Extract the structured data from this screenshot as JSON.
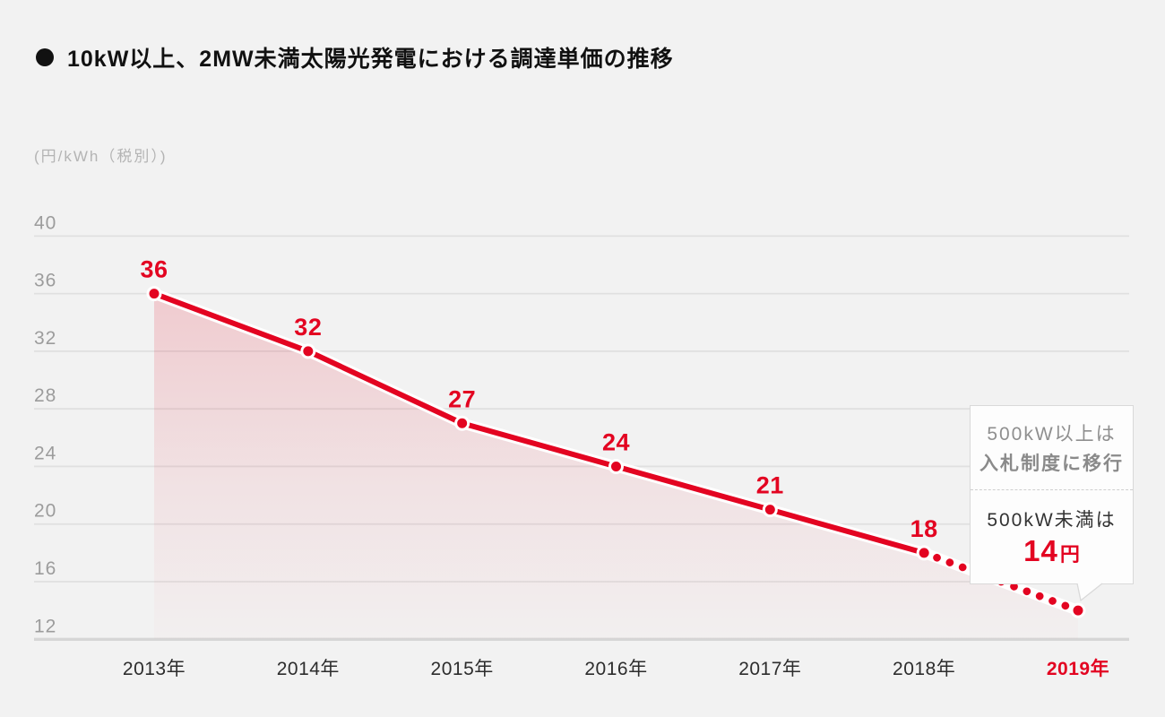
{
  "page": {
    "background": "#f2f2f2"
  },
  "header": {
    "bullet_icon": "circle",
    "title": "10kW以上、2MW未満太陽光発電における調達単価の推移"
  },
  "chart_data": {
    "type": "line",
    "title": "10kW以上、2MW未満太陽光発電における調達単価の推移",
    "unit_label": "(円/kWh（税別）)",
    "categories": [
      "2013年",
      "2014年",
      "2015年",
      "2016年",
      "2017年",
      "2018年",
      "2019年"
    ],
    "values": [
      36,
      32,
      27,
      24,
      21,
      18,
      14
    ],
    "point_labels": [
      "36",
      "32",
      "27",
      "24",
      "21",
      "18",
      ""
    ],
    "dashed_from_index": 5,
    "highlight_last_category": true,
    "y_ticks": [
      40,
      36,
      32,
      28,
      24,
      20,
      16,
      12
    ],
    "ylim": [
      12,
      42
    ],
    "grid": true,
    "legend": "none",
    "colors": {
      "accent": "#e30421",
      "grid_line": "#e0e0e0",
      "axis_line": "#d6d6d6",
      "tick_label": "#9c9c9c",
      "x_label": "#2d2d2d",
      "area_fill_top": "rgba(227,10,34,0.17)",
      "area_fill_mid": "rgba(227,10,34,0.07)",
      "area_fill_bottom": "rgba(227,10,34,0.01)",
      "halo": "#ffffff"
    }
  },
  "callout": {
    "top_line1": "500kW以上は",
    "top_line2": "入札制度に移行",
    "bottom_label": "500kW未満は",
    "bottom_value": "14",
    "bottom_unit": "円"
  }
}
